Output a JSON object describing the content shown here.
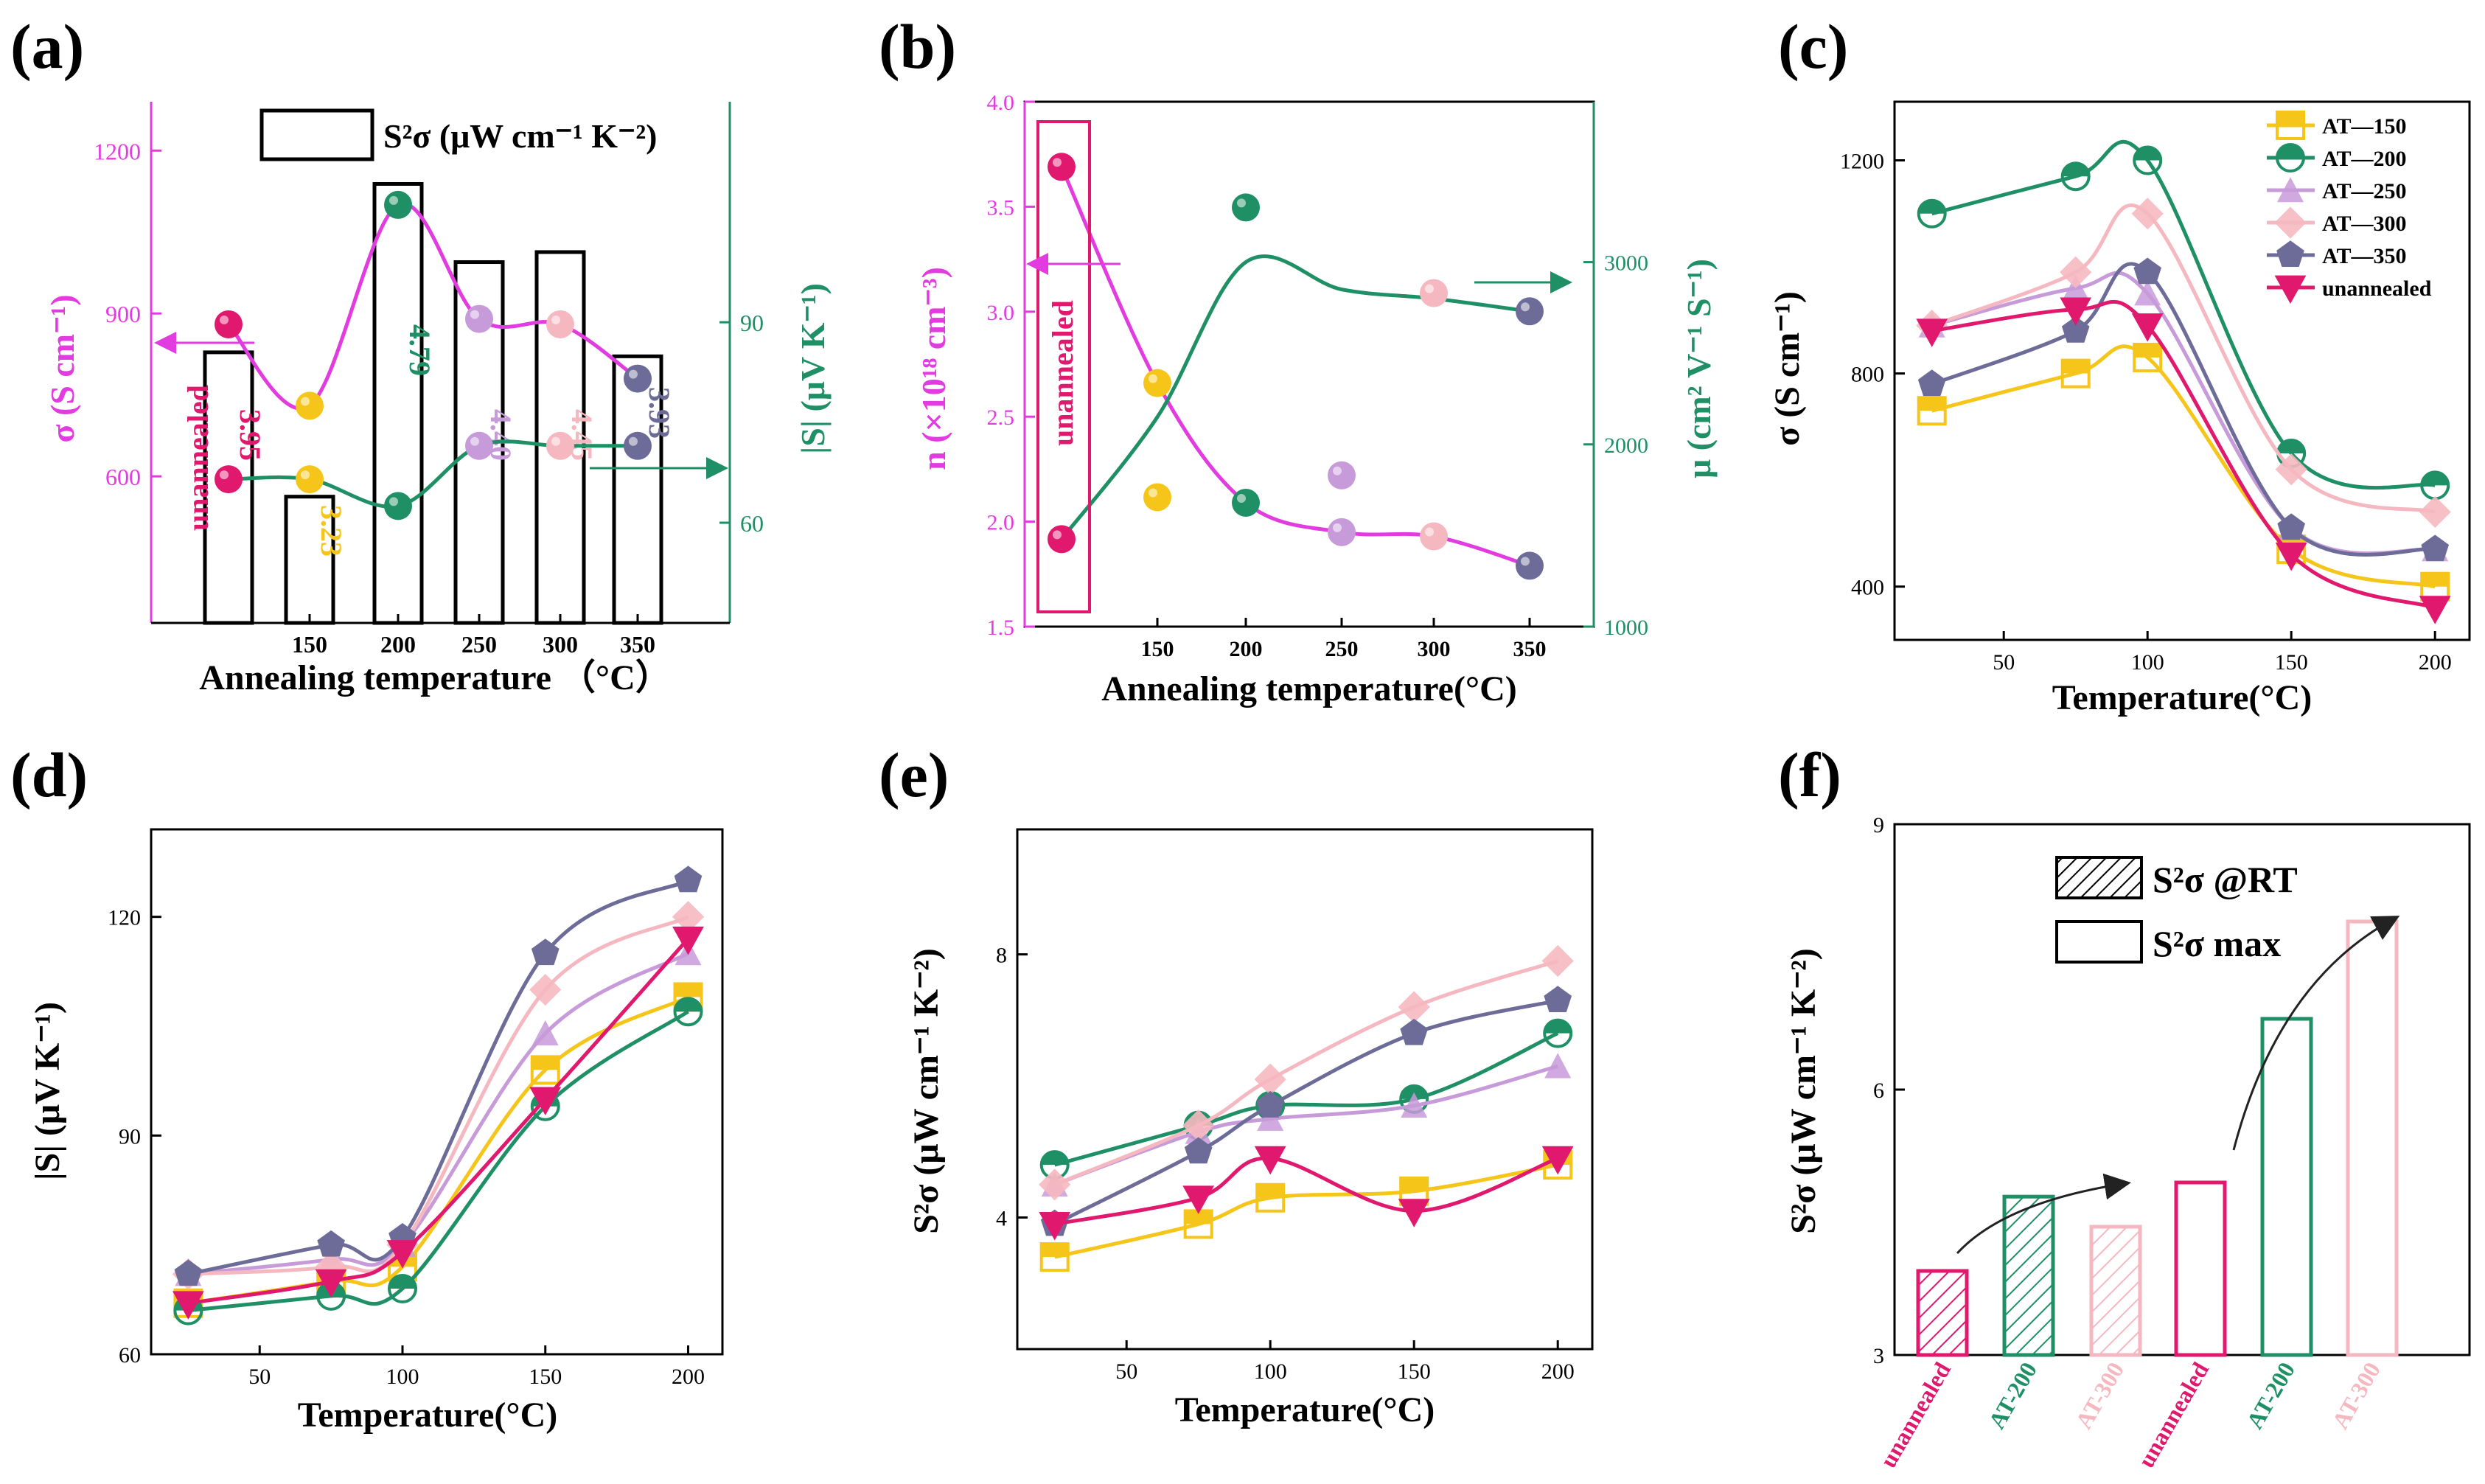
{
  "colors": {
    "magenta": "#e23be0",
    "green": "#1f8f66",
    "axis_left_a": "#e23be0",
    "axis_right_a": "#1f8f66",
    "s150": "#f5c51a",
    "s200": "#1f8f66",
    "s250": "#c79ad9",
    "s300": "#f6b8c0",
    "s350": "#6d6c99",
    "unannealed": "#e0186e",
    "crimson": "#d4145a"
  },
  "chart_data": [
    {
      "panel": "(a)",
      "type": "bar+line",
      "xlabel": "Annealing temperature （°C）",
      "categories": [
        "",
        "150",
        "200",
        "250",
        "300",
        "350"
      ],
      "bar_legend": "S²σ (μW cm⁻¹ K⁻²)",
      "bar_values": [
        3.95,
        3.23,
        4.79,
        4.4,
        4.45,
        3.93
      ],
      "bar_labels": [
        "3.95",
        "3.23",
        "4.79",
        "4.40",
        "4.45",
        "3.93"
      ],
      "unannealed_label": "unannealed",
      "left_axis": {
        "label": "σ (S cm⁻¹)",
        "ticks": [
          "600",
          "900",
          "1200"
        ],
        "ylim": [
          330,
          1290
        ]
      },
      "right_axis": {
        "label": "|S| (μV K⁻¹)",
        "ticks": [
          "60",
          "90"
        ],
        "ylim": [
          45,
          123
        ]
      },
      "sigma": [
        880,
        730,
        1100,
        890,
        880,
        780
      ],
      "seebeck": [
        66.5,
        66.5,
        62.5,
        71.5,
        71.5,
        71.5
      ]
    },
    {
      "panel": "(b)",
      "type": "scatter+line",
      "xlabel": "Annealing temperature(°C)",
      "categories": [
        "",
        "150",
        "200",
        "250",
        "300",
        "350"
      ],
      "unannealed_label": "unannealed",
      "left_axis": {
        "label": "n (×10¹⁸ cm⁻³)",
        "ticks": [
          "1.5",
          "2.0",
          "2.5",
          "3.0",
          "3.5",
          "4.0"
        ],
        "ylim": [
          1.5,
          4.0
        ]
      },
      "right_axis": {
        "label": "μ (cm² V⁻¹ S⁻¹)",
        "ticks": [
          "1000",
          "2000",
          "3000"
        ],
        "ylim": [
          1000,
          3880
        ]
      },
      "n": [
        3.69,
        2.66,
        2.09,
        1.95,
        1.93,
        1.79
      ],
      "mu": [
        1480,
        1710,
        3300,
        1830,
        2830,
        2730
      ]
    },
    {
      "panel": "(c)",
      "type": "line",
      "xlabel": "Temperature(°C)",
      "ylabel": "σ (S cm⁻¹)",
      "xlim": [
        12,
        212
      ],
      "ylim": [
        300,
        1310
      ],
      "xticks": [
        "50",
        "100",
        "150",
        "200"
      ],
      "yticks": [
        "400",
        "800",
        "1200"
      ],
      "x": [
        25,
        75,
        100,
        150,
        200
      ],
      "series": [
        {
          "name": "AT—150",
          "values": [
            730,
            800,
            830,
            470,
            400
          ]
        },
        {
          "name": "AT—200",
          "values": [
            1100,
            1170,
            1200,
            650,
            590
          ]
        },
        {
          "name": "AT—250",
          "values": [
            890,
            960,
            950,
            510,
            470
          ]
        },
        {
          "name": "AT—300",
          "values": [
            890,
            990,
            1100,
            620,
            540
          ]
        },
        {
          "name": "AT—350",
          "values": [
            780,
            880,
            990,
            510,
            470
          ]
        },
        {
          "name": "unannealed",
          "values": [
            880,
            920,
            890,
            460,
            360
          ]
        }
      ]
    },
    {
      "panel": "(d)",
      "type": "line",
      "xlabel": "Temperature(°C)",
      "ylabel": "|S| (μV K⁻¹)",
      "xlim": [
        12,
        212
      ],
      "ylim": [
        60,
        132
      ],
      "xticks": [
        "50",
        "100",
        "150",
        "200"
      ],
      "yticks": [
        "60",
        "90",
        "120"
      ],
      "x": [
        25,
        75,
        100,
        150,
        200
      ],
      "series": [
        {
          "name": "AT—150",
          "values": [
            67,
            70,
            72,
            99,
            109
          ]
        },
        {
          "name": "AT—200",
          "values": [
            66,
            68,
            69,
            94,
            107
          ]
        },
        {
          "name": "AT—250",
          "values": [
            71,
            73,
            75,
            104,
            115
          ]
        },
        {
          "name": "AT—300",
          "values": [
            71,
            72,
            75,
            110,
            120
          ]
        },
        {
          "name": "AT—350",
          "values": [
            71,
            75,
            76,
            115,
            125
          ]
        },
        {
          "name": "unannealed",
          "values": [
            67,
            70,
            74,
            95,
            117
          ]
        }
      ]
    },
    {
      "panel": "(e)",
      "type": "line",
      "xlabel": "Temperature(°C)",
      "ylabel": "S²σ (μW cm⁻¹ K⁻²)",
      "xlim": [
        12,
        212
      ],
      "ylim": [
        2.0,
        9.9
      ],
      "xticks": [
        "50",
        "100",
        "150",
        "200"
      ],
      "yticks": [
        "4",
        "8"
      ],
      "x": [
        25,
        75,
        100,
        150,
        200
      ],
      "series": [
        {
          "name": "AT—150",
          "values": [
            3.4,
            3.9,
            4.3,
            4.4,
            4.8
          ]
        },
        {
          "name": "AT—200",
          "values": [
            4.8,
            5.4,
            5.7,
            5.8,
            6.8
          ]
        },
        {
          "name": "AT—250",
          "values": [
            4.5,
            5.3,
            5.5,
            5.7,
            6.3
          ]
        },
        {
          "name": "AT—300",
          "values": [
            4.5,
            5.4,
            6.1,
            7.2,
            7.9
          ]
        },
        {
          "name": "AT—350",
          "values": [
            3.9,
            5.0,
            5.7,
            6.8,
            7.3
          ]
        },
        {
          "name": "unannealed",
          "values": [
            3.9,
            4.3,
            4.9,
            4.1,
            4.9
          ]
        }
      ]
    },
    {
      "panel": "(f)",
      "type": "bar",
      "ylabel": "S²σ (μW cm⁻¹ K⁻²)",
      "ylim": [
        3,
        9
      ],
      "yticks": [
        "3",
        "6",
        "9"
      ],
      "categories": [
        "unannealed",
        "AT-200",
        "AT-300",
        "unannealed",
        "AT-200",
        "AT-300"
      ],
      "values": [
        3.95,
        4.79,
        4.45,
        4.95,
        6.8,
        7.9
      ],
      "legend": [
        "S²σ @RT",
        "S²σ max"
      ]
    }
  ],
  "panel_labels": [
    "(a)",
    "(b)",
    "(c)",
    "(d)",
    "(e)",
    "(f)"
  ]
}
